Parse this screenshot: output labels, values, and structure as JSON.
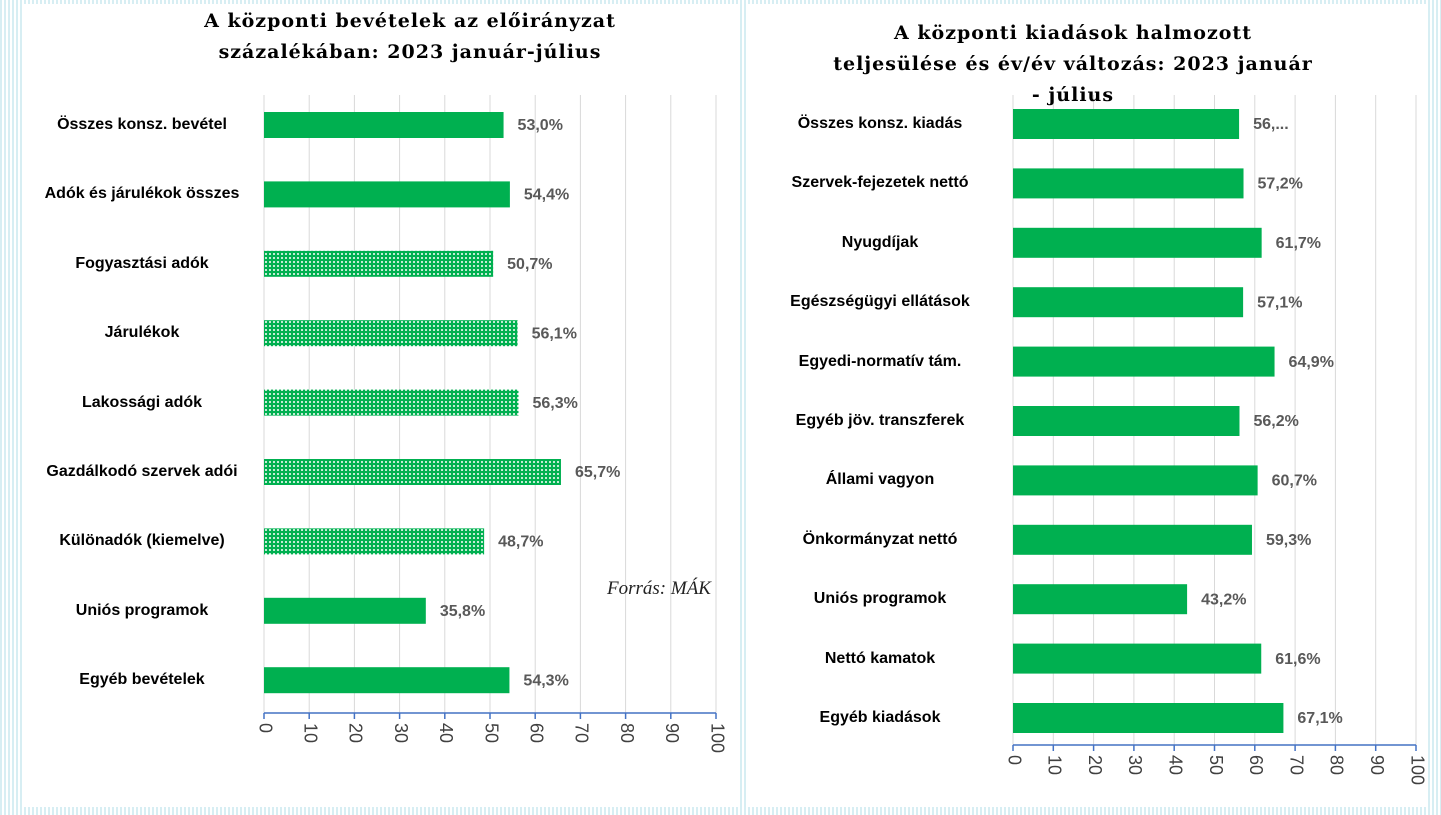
{
  "chart_data": [
    {
      "type": "bar",
      "orientation": "horizontal",
      "title": "A központi bevételek az előirányzat százalékában: 2023 január-július",
      "categories": [
        "Összes konsz. bevétel",
        "Adók és járulékok összes",
        "Fogyasztási adók",
        "Járulékok",
        "Lakossági adók",
        "Gazdálkodó szervek adói",
        "Különadók (kiemelve)",
        "Uniós programok",
        "Egyéb bevételek"
      ],
      "values": [
        53.0,
        54.4,
        50.7,
        56.1,
        56.3,
        65.7,
        48.7,
        35.8,
        54.3
      ],
      "value_labels": [
        "53,0%",
        "54,4%",
        "50,7%",
        "56,1%",
        "56,3%",
        "65,7%",
        "48,7%",
        "35,8%",
        "54,3%"
      ],
      "bar_styles": [
        "solid",
        "solid",
        "dotted",
        "dotted",
        "dotted",
        "dotted",
        "dotted",
        "solid",
        "solid"
      ],
      "color": "#00b050",
      "annotation": "Forrás: MÁK",
      "xlim": [
        0,
        100
      ],
      "xticks": [
        0,
        10,
        20,
        30,
        40,
        50,
        60,
        70,
        80,
        90,
        100
      ],
      "grid": true
    },
    {
      "type": "bar",
      "orientation": "horizontal",
      "title": "A központi kiadások halmozott teljesülése és év/év változás: 2023 január - július",
      "categories": [
        "Összes konsz. kiadás",
        "Szervek-fejezetek nettó",
        "Nyugdíjak",
        "Egészségügyi ellátások",
        "Egyedi-normatív tám.",
        "Egyéb jöv. transzferek",
        "Állami vagyon",
        "Önkormányzat nettó",
        "Uniós programok",
        "Nettó kamatok",
        "Egyéb kiadások"
      ],
      "values": [
        56.1,
        57.2,
        61.7,
        57.1,
        64.9,
        56.2,
        60.7,
        59.3,
        43.2,
        61.6,
        67.1
      ],
      "value_labels": [
        "56,...",
        "57,2%",
        "61,7%",
        "57,1%",
        "64,9%",
        "56,2%",
        "60,7%",
        "59,3%",
        "43,2%",
        "61,6%",
        "67,1%"
      ],
      "color": "#00b050",
      "xlim": [
        0,
        100
      ],
      "xticks": [
        0,
        10,
        20,
        30,
        40,
        50,
        60,
        70,
        80,
        90,
        100
      ],
      "grid": true
    }
  ]
}
